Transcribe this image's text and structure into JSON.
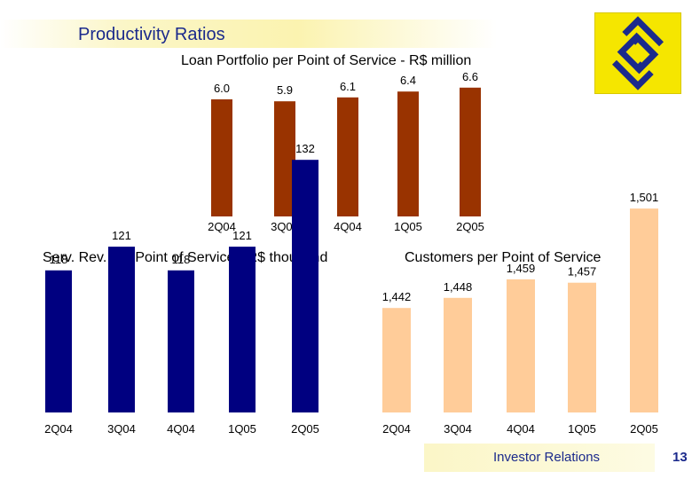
{
  "header": {
    "title": "Productivity Ratios"
  },
  "footer": {
    "label": "Investor Relations",
    "page": "13"
  },
  "logo": {
    "name": "banco-do-brasil-logo-icon",
    "bg_color": "#f5e600",
    "fg_color": "#1b2a8c"
  },
  "chart_data": [
    {
      "type": "bar",
      "title": "Loan Portfolio per Point of Service - R$ million",
      "categories": [
        "2Q04",
        "3Q04",
        "4Q04",
        "1Q05",
        "2Q05"
      ],
      "values": [
        6.0,
        5.9,
        6.1,
        6.4,
        6.6
      ],
      "labels": [
        "6.0",
        "5.9",
        "6.1",
        "6.4",
        "6.6"
      ],
      "color": "#993300"
    },
    {
      "type": "bar",
      "title": "Serv. Rev. per Point of Service - R$ thousand",
      "categories": [
        "2Q04",
        "3Q04",
        "4Q04",
        "1Q05",
        "2Q05"
      ],
      "values": [
        118,
        121,
        118,
        121,
        132
      ],
      "labels": [
        "118",
        "121",
        "118",
        "121",
        "132"
      ],
      "color": "#000080"
    },
    {
      "type": "bar",
      "title": "Customers per Point of Service",
      "categories": [
        "2Q04",
        "3Q04",
        "4Q04",
        "1Q05",
        "2Q05"
      ],
      "values": [
        1442,
        1448,
        1459,
        1457,
        1501
      ],
      "labels": [
        "1,442",
        "1,448",
        "1,459",
        "1,457",
        "1,501"
      ],
      "color": "#ffcc99"
    }
  ]
}
